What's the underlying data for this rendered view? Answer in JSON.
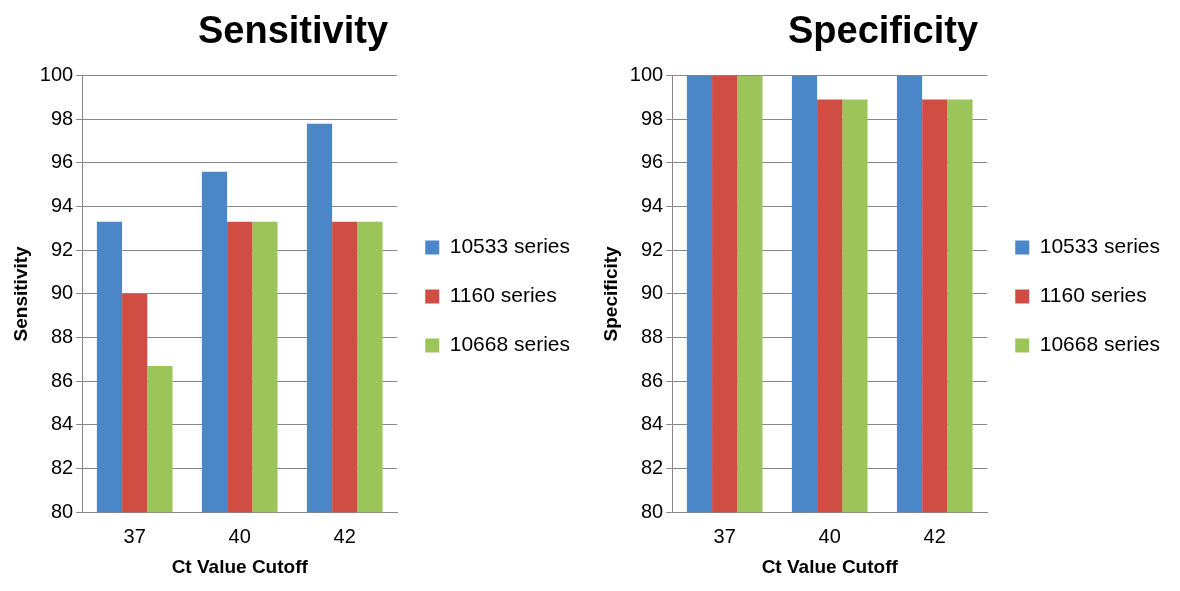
{
  "chart_data": [
    {
      "type": "bar",
      "title": "Sensitivity",
      "xlabel": "Ct Value Cutoff",
      "ylabel": "Sensitivity",
      "categories": [
        "37",
        "40",
        "42"
      ],
      "series": [
        {
          "name": "10533 series",
          "color": "#4a86c8",
          "values": [
            93.3,
            95.6,
            97.8
          ]
        },
        {
          "name": "1160 series",
          "color": "#cf4d43",
          "values": [
            90.0,
            93.3,
            93.3
          ]
        },
        {
          "name": "10668 series",
          "color": "#9bc459",
          "values": [
            86.7,
            93.3,
            93.3
          ]
        }
      ],
      "ylim": [
        80,
        100
      ],
      "yticks": [
        80,
        82,
        84,
        86,
        88,
        90,
        92,
        94,
        96,
        98,
        100
      ],
      "grid": "y",
      "legend": "right"
    },
    {
      "type": "bar",
      "title": "Specificity",
      "xlabel": "Ct Value Cutoff",
      "ylabel": "Specificity",
      "categories": [
        "37",
        "40",
        "42"
      ],
      "series": [
        {
          "name": "10533 series",
          "color": "#4a86c8",
          "values": [
            100,
            100,
            100
          ]
        },
        {
          "name": "1160 series",
          "color": "#cf4d43",
          "values": [
            100,
            98.9,
            98.9
          ]
        },
        {
          "name": "10668 series",
          "color": "#9bc459",
          "values": [
            100,
            98.9,
            98.9
          ]
        }
      ],
      "ylim": [
        80,
        100
      ],
      "yticks": [
        80,
        82,
        84,
        86,
        88,
        90,
        92,
        94,
        96,
        98,
        100
      ],
      "grid": "y",
      "legend": "right"
    }
  ]
}
